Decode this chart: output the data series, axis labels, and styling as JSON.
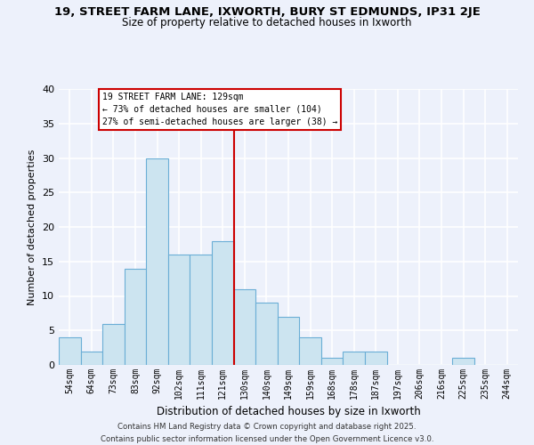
{
  "title1": "19, STREET FARM LANE, IXWORTH, BURY ST EDMUNDS, IP31 2JE",
  "title2": "Size of property relative to detached houses in Ixworth",
  "xlabel": "Distribution of detached houses by size in Ixworth",
  "ylabel": "Number of detached properties",
  "bar_labels": [
    "54sqm",
    "64sqm",
    "73sqm",
    "83sqm",
    "92sqm",
    "102sqm",
    "111sqm",
    "121sqm",
    "130sqm",
    "140sqm",
    "149sqm",
    "159sqm",
    "168sqm",
    "178sqm",
    "187sqm",
    "197sqm",
    "206sqm",
    "216sqm",
    "225sqm",
    "235sqm",
    "244sqm"
  ],
  "bar_heights": [
    4,
    2,
    6,
    14,
    30,
    16,
    16,
    18,
    11,
    9,
    7,
    4,
    1,
    2,
    2,
    0,
    0,
    0,
    1,
    0,
    0
  ],
  "bar_color": "#cce4f0",
  "bar_edge_color": "#6baed6",
  "vline_label_idx": 8,
  "vline_color": "#cc0000",
  "annotation_title": "19 STREET FARM LANE: 129sqm",
  "annotation_line1": "← 73% of detached houses are smaller (104)",
  "annotation_line2": "27% of semi-detached houses are larger (38) →",
  "annotation_box_color": "#ffffff",
  "annotation_box_edge": "#cc0000",
  "ylim": [
    0,
    40
  ],
  "yticks": [
    0,
    5,
    10,
    15,
    20,
    25,
    30,
    35,
    40
  ],
  "footnote1": "Contains HM Land Registry data © Crown copyright and database right 2025.",
  "footnote2": "Contains public sector information licensed under the Open Government Licence v3.0.",
  "bg_color": "#edf1fb",
  "grid_color": "#ffffff"
}
